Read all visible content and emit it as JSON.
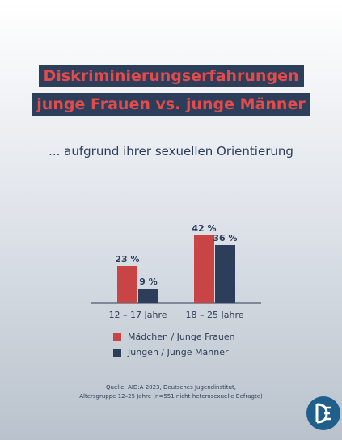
{
  "title_line1": "Diskriminierungserfahrungen",
  "title_line2": "junge Frauen vs. junge Männer",
  "subtitle": "... aufgrund ihrer sexuellen Orientierung",
  "source_line1": "Quelle:  AID:A 2023, Deutsches Jugendinstitut,",
  "source_line2": "Altersgruppe 12–25 Jahre (n=551 nicht-heterosexuelle Befragte)",
  "logo_icon": "organization-logo-icon",
  "colors": {
    "red": "#c94545",
    "navy": "#2c3e5a",
    "logo_blue": "#1f5f8c"
  },
  "chart_data": {
    "type": "bar",
    "categories": [
      "12 – 17 Jahre",
      "18 – 25 Jahre"
    ],
    "series": [
      {
        "name": "Mädchen / Junge Frauen",
        "values": [
          23,
          42
        ],
        "labels": [
          "23 %",
          "42 %"
        ],
        "color": "#c94545"
      },
      {
        "name": "Jungen / Junge Männer",
        "values": [
          9,
          36
        ],
        "labels": [
          "9 %",
          "36 %"
        ],
        "color": "#2c3e5a"
      }
    ],
    "title": "Diskriminierungserfahrungen junge Frauen vs. junge Männer",
    "subtitle": "... aufgrund ihrer sexuellen Orientierung",
    "xlabel": "",
    "ylabel": "",
    "ylim": [
      0,
      42
    ],
    "grid": false,
    "legend": "bottom"
  }
}
